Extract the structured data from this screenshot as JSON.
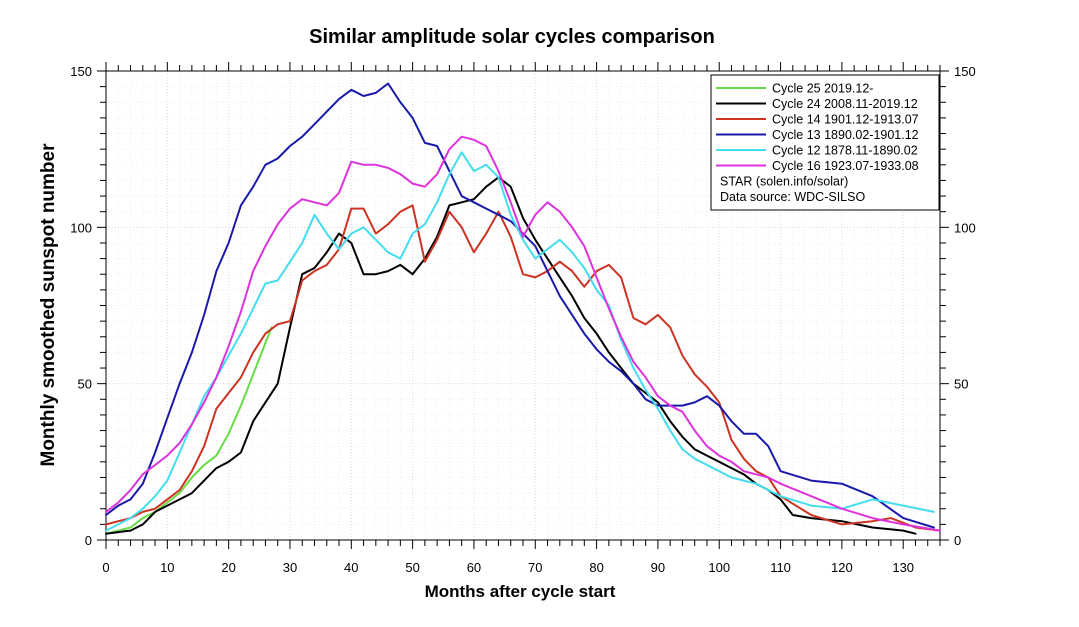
{
  "chart_data": {
    "type": "line",
    "title": "Similar amplitude solar cycles comparison",
    "xlabel": "Months after cycle start",
    "ylabel": "Monthly smoothed sunspot number",
    "xlim": [
      0,
      136
    ],
    "ylim": [
      0,
      150
    ],
    "x_ticks": [
      0,
      10,
      20,
      30,
      40,
      50,
      60,
      70,
      80,
      90,
      100,
      110,
      120,
      130
    ],
    "y_ticks": [
      0,
      50,
      100,
      150
    ],
    "grid": true,
    "legend_position": "top-right",
    "legend_notes": [
      "STAR (solen.info/solar)",
      "Data source: WDC-SILSO"
    ],
    "series": [
      {
        "name": "Cycle 25 2019.12-",
        "color": "#66dd44",
        "x": [
          0,
          2,
          4,
          6,
          8,
          10,
          12,
          14,
          16,
          18,
          20,
          22,
          24,
          26,
          27
        ],
        "y": [
          2,
          3,
          4,
          7,
          9,
          12,
          15,
          20,
          24,
          27,
          34,
          43,
          53,
          63,
          68
        ]
      },
      {
        "name": "Cycle 24 2008.11-2019.12",
        "color": "#000000",
        "x": [
          0,
          4,
          6,
          8,
          10,
          12,
          14,
          16,
          18,
          20,
          22,
          24,
          26,
          28,
          30,
          32,
          34,
          36,
          38,
          40,
          42,
          44,
          46,
          48,
          50,
          52,
          54,
          56,
          58,
          60,
          62,
          64,
          66,
          68,
          70,
          72,
          74,
          76,
          78,
          80,
          82,
          84,
          86,
          88,
          90,
          92,
          94,
          96,
          98,
          100,
          102,
          104,
          106,
          108,
          110,
          112,
          115,
          120,
          125,
          130,
          132
        ],
        "y": [
          2,
          3,
          5,
          9,
          11,
          13,
          15,
          19,
          23,
          25,
          28,
          38,
          44,
          50,
          68,
          85,
          87,
          92,
          98,
          95,
          85,
          85,
          86,
          88,
          85,
          90,
          97,
          107,
          108,
          109,
          113,
          116,
          113,
          103,
          96,
          90,
          84,
          78,
          71,
          66,
          60,
          55,
          50,
          47,
          44,
          38,
          33,
          29,
          27,
          25,
          23,
          21,
          18,
          16,
          13,
          8,
          7,
          6,
          4,
          3,
          2
        ]
      },
      {
        "name": "Cycle 14 1901.12-1913.07",
        "color": "#cc3322",
        "x": [
          0,
          4,
          6,
          8,
          10,
          12,
          14,
          16,
          18,
          20,
          22,
          24,
          26,
          28,
          30,
          32,
          34,
          36,
          38,
          40,
          42,
          44,
          46,
          48,
          50,
          52,
          54,
          56,
          58,
          60,
          62,
          64,
          66,
          68,
          70,
          72,
          74,
          76,
          78,
          80,
          82,
          84,
          86,
          88,
          90,
          92,
          94,
          96,
          98,
          100,
          102,
          104,
          106,
          108,
          110,
          115,
          120,
          125,
          128,
          132,
          136
        ],
        "y": [
          5,
          7,
          9,
          10,
          13,
          16,
          22,
          30,
          42,
          47,
          52,
          60,
          66,
          69,
          70,
          83,
          86,
          88,
          93,
          106,
          106,
          98,
          101,
          105,
          107,
          89,
          96,
          105,
          100,
          92,
          98,
          105,
          97,
          85,
          84,
          86,
          89,
          86,
          81,
          86,
          88,
          84,
          71,
          69,
          72,
          68,
          59,
          53,
          49,
          44,
          32,
          26,
          22,
          20,
          14,
          8,
          5,
          6,
          7,
          4,
          3
        ]
      },
      {
        "name": "Cycle 13 1890.02-1901.12",
        "color": "#1a1aaa",
        "x": [
          0,
          2,
          4,
          6,
          8,
          10,
          12,
          14,
          16,
          18,
          20,
          22,
          24,
          26,
          28,
          30,
          32,
          34,
          36,
          38,
          40,
          42,
          44,
          46,
          48,
          50,
          52,
          54,
          56,
          58,
          60,
          62,
          64,
          66,
          68,
          70,
          72,
          74,
          76,
          78,
          80,
          82,
          84,
          86,
          88,
          90,
          92,
          94,
          96,
          98,
          100,
          102,
          104,
          106,
          108,
          110,
          115,
          120,
          125,
          130,
          135
        ],
        "y": [
          8,
          11,
          13,
          18,
          28,
          39,
          50,
          60,
          72,
          86,
          95,
          107,
          113,
          120,
          122,
          126,
          129,
          133,
          137,
          141,
          144,
          142,
          143,
          146,
          140,
          135,
          127,
          126,
          118,
          110,
          108,
          106,
          104,
          102,
          98,
          94,
          86,
          78,
          72,
          66,
          61,
          57,
          54,
          50,
          45,
          43,
          43,
          43,
          44,
          46,
          43,
          38,
          34,
          34,
          30,
          22,
          19,
          18,
          14,
          7,
          4
        ]
      },
      {
        "name": "Cycle 12 1878.11-1890.02",
        "color": "#44ddee",
        "x": [
          0,
          2,
          4,
          6,
          8,
          10,
          12,
          14,
          16,
          18,
          20,
          22,
          24,
          26,
          28,
          30,
          32,
          34,
          36,
          38,
          40,
          42,
          44,
          46,
          48,
          50,
          52,
          54,
          56,
          58,
          60,
          62,
          64,
          66,
          68,
          70,
          72,
          74,
          76,
          78,
          80,
          82,
          84,
          86,
          88,
          90,
          92,
          94,
          96,
          98,
          100,
          102,
          104,
          106,
          108,
          110,
          115,
          120,
          125,
          130,
          135
        ],
        "y": [
          3,
          5,
          7,
          10,
          14,
          19,
          28,
          37,
          46,
          52,
          59,
          66,
          74,
          82,
          83,
          89,
          95,
          104,
          98,
          93,
          98,
          100,
          96,
          92,
          90,
          98,
          101,
          108,
          117,
          124,
          118,
          120,
          116,
          104,
          96,
          90,
          93,
          96,
          92,
          87,
          80,
          75,
          64,
          55,
          48,
          42,
          35,
          29,
          26,
          24,
          22,
          20,
          19,
          18,
          16,
          14,
          11,
          10,
          13,
          11,
          9
        ]
      },
      {
        "name": "Cycle 16 1923.07-1933.08",
        "color": "#dd33dd",
        "x": [
          0,
          2,
          4,
          6,
          8,
          10,
          12,
          14,
          16,
          18,
          20,
          22,
          24,
          26,
          28,
          30,
          32,
          34,
          36,
          38,
          40,
          42,
          44,
          46,
          48,
          50,
          52,
          54,
          56,
          58,
          60,
          62,
          64,
          66,
          68,
          70,
          72,
          74,
          76,
          78,
          80,
          82,
          84,
          86,
          88,
          90,
          92,
          94,
          96,
          98,
          100,
          102,
          104,
          106,
          108,
          110,
          115,
          120,
          125,
          130,
          136
        ],
        "y": [
          9,
          12,
          16,
          21,
          24,
          27,
          31,
          37,
          44,
          52,
          62,
          73,
          86,
          94,
          101,
          106,
          109,
          108,
          107,
          111,
          121,
          120,
          120,
          119,
          117,
          114,
          113,
          117,
          125,
          129,
          128,
          126,
          118,
          108,
          97,
          104,
          108,
          105,
          100,
          94,
          84,
          74,
          65,
          57,
          52,
          46,
          43,
          41,
          35,
          30,
          27,
          25,
          22,
          21,
          20,
          18,
          14,
          10,
          7,
          5,
          3
        ]
      }
    ]
  }
}
